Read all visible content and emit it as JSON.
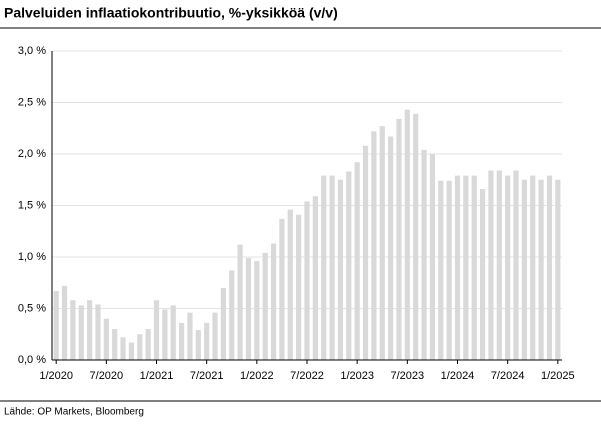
{
  "chart_data": {
    "type": "bar",
    "title": "Palveluiden inflaatiokontribuutio, %-yksikköä (v/v)",
    "source": "Lähde: OP Markets, Bloomberg",
    "color": "#d9d9d9",
    "grid": true,
    "categories": [
      "1/2020",
      null,
      null,
      null,
      null,
      null,
      "7/2020",
      null,
      null,
      null,
      null,
      null,
      "1/2021",
      null,
      null,
      null,
      null,
      null,
      "7/2021",
      null,
      null,
      null,
      null,
      null,
      "1/2022",
      null,
      null,
      null,
      null,
      null,
      "7/2022",
      null,
      null,
      null,
      null,
      null,
      "1/2023",
      null,
      null,
      null,
      null,
      null,
      "7/2023",
      null,
      null,
      null,
      null,
      null,
      "1/2024",
      null,
      null,
      null,
      null,
      null,
      "7/2024",
      null,
      null,
      null,
      null,
      null,
      "1/2025"
    ],
    "values": [
      0.67,
      0.72,
      0.58,
      0.53,
      0.58,
      0.54,
      0.4,
      0.3,
      0.22,
      0.17,
      0.25,
      0.3,
      0.58,
      0.49,
      0.53,
      0.36,
      0.46,
      0.29,
      0.36,
      0.46,
      0.7,
      0.87,
      1.12,
      0.99,
      0.96,
      1.04,
      1.13,
      1.37,
      1.46,
      1.41,
      1.54,
      1.59,
      1.79,
      1.79,
      1.75,
      1.83,
      1.92,
      2.08,
      2.22,
      2.27,
      2.17,
      2.34,
      2.43,
      2.39,
      2.04,
      2.0,
      1.74,
      1.74,
      1.79,
      1.79,
      1.79,
      1.66,
      1.84,
      1.84,
      1.79,
      1.84,
      1.75,
      1.79,
      1.75,
      1.79,
      1.75
    ],
    "ylim": [
      0,
      3
    ],
    "yticks": [
      {
        "value": 0,
        "label": "0,0 %"
      },
      {
        "value": 0.5,
        "label": "0,5 %"
      },
      {
        "value": 1,
        "label": "1,0 %"
      },
      {
        "value": 1.5,
        "label": "1,5 %"
      },
      {
        "value": 2,
        "label": "2,0 %"
      },
      {
        "value": 2.5,
        "label": "2,5 %"
      },
      {
        "value": 3,
        "label": "3,0 %"
      }
    ]
  }
}
